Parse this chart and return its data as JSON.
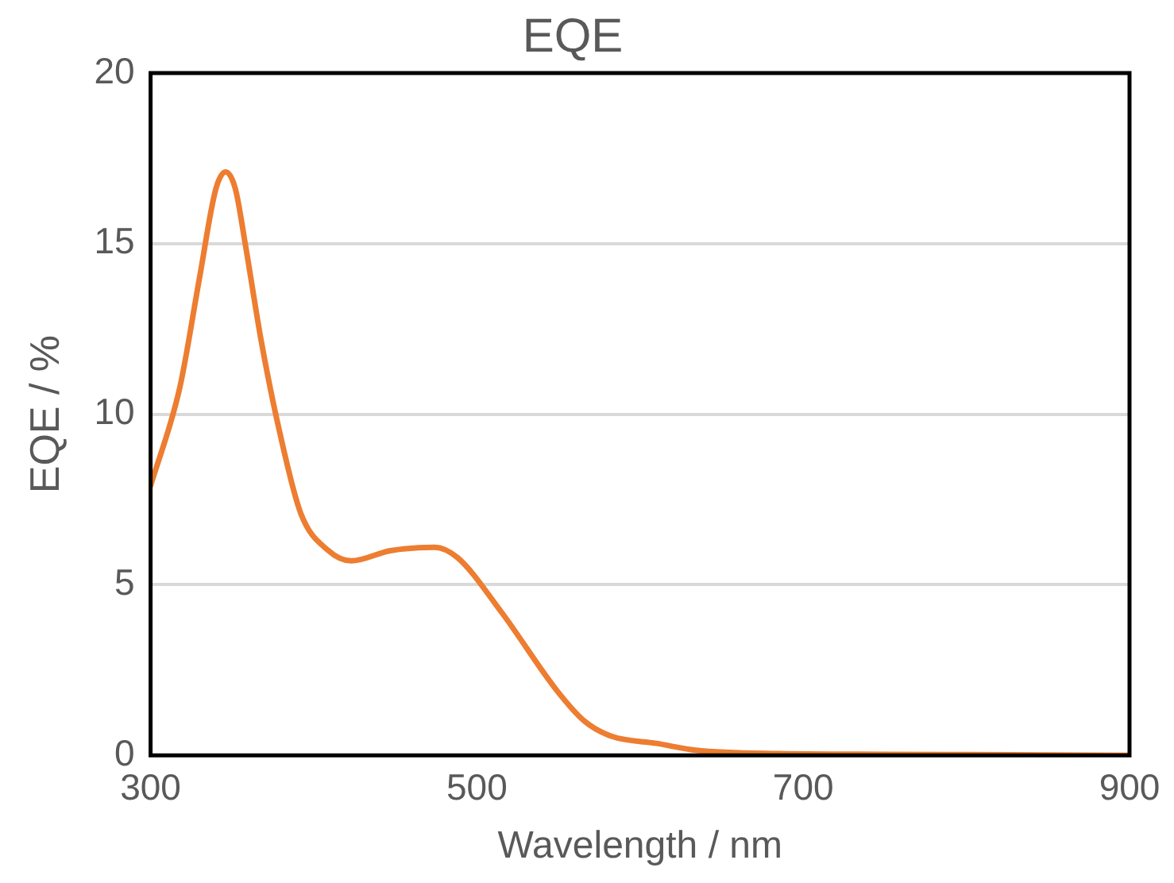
{
  "chart_data": {
    "type": "line",
    "title": "EQE",
    "xlabel": "Wavelength / nm",
    "ylabel": "EQE / %",
    "xlim": [
      300,
      900
    ],
    "xticks": [
      300,
      500,
      700,
      900
    ],
    "ylim": [
      0,
      20
    ],
    "yticks": [
      0,
      5,
      10,
      15,
      20
    ],
    "grid": "y",
    "legend": false,
    "marker": "none",
    "line_style": "solid",
    "series": [
      {
        "color": "#ed7d31",
        "x": [
          300,
          318,
          330,
          340,
          346,
          352,
          358,
          368,
          379,
          392,
          409,
          423,
          447,
          474,
          488,
          515,
          549,
          566,
          583,
          610,
          634,
          685,
          750,
          800,
          900
        ],
        "values": [
          7.9,
          10.8,
          14.0,
          16.6,
          17.1,
          16.6,
          15.0,
          12.1,
          9.5,
          7.1,
          6.0,
          5.7,
          6.0,
          6.1,
          5.8,
          4.2,
          1.9,
          1.0,
          0.55,
          0.35,
          0.15,
          0.05,
          0.03,
          0.02,
          0
        ]
      }
    ]
  }
}
